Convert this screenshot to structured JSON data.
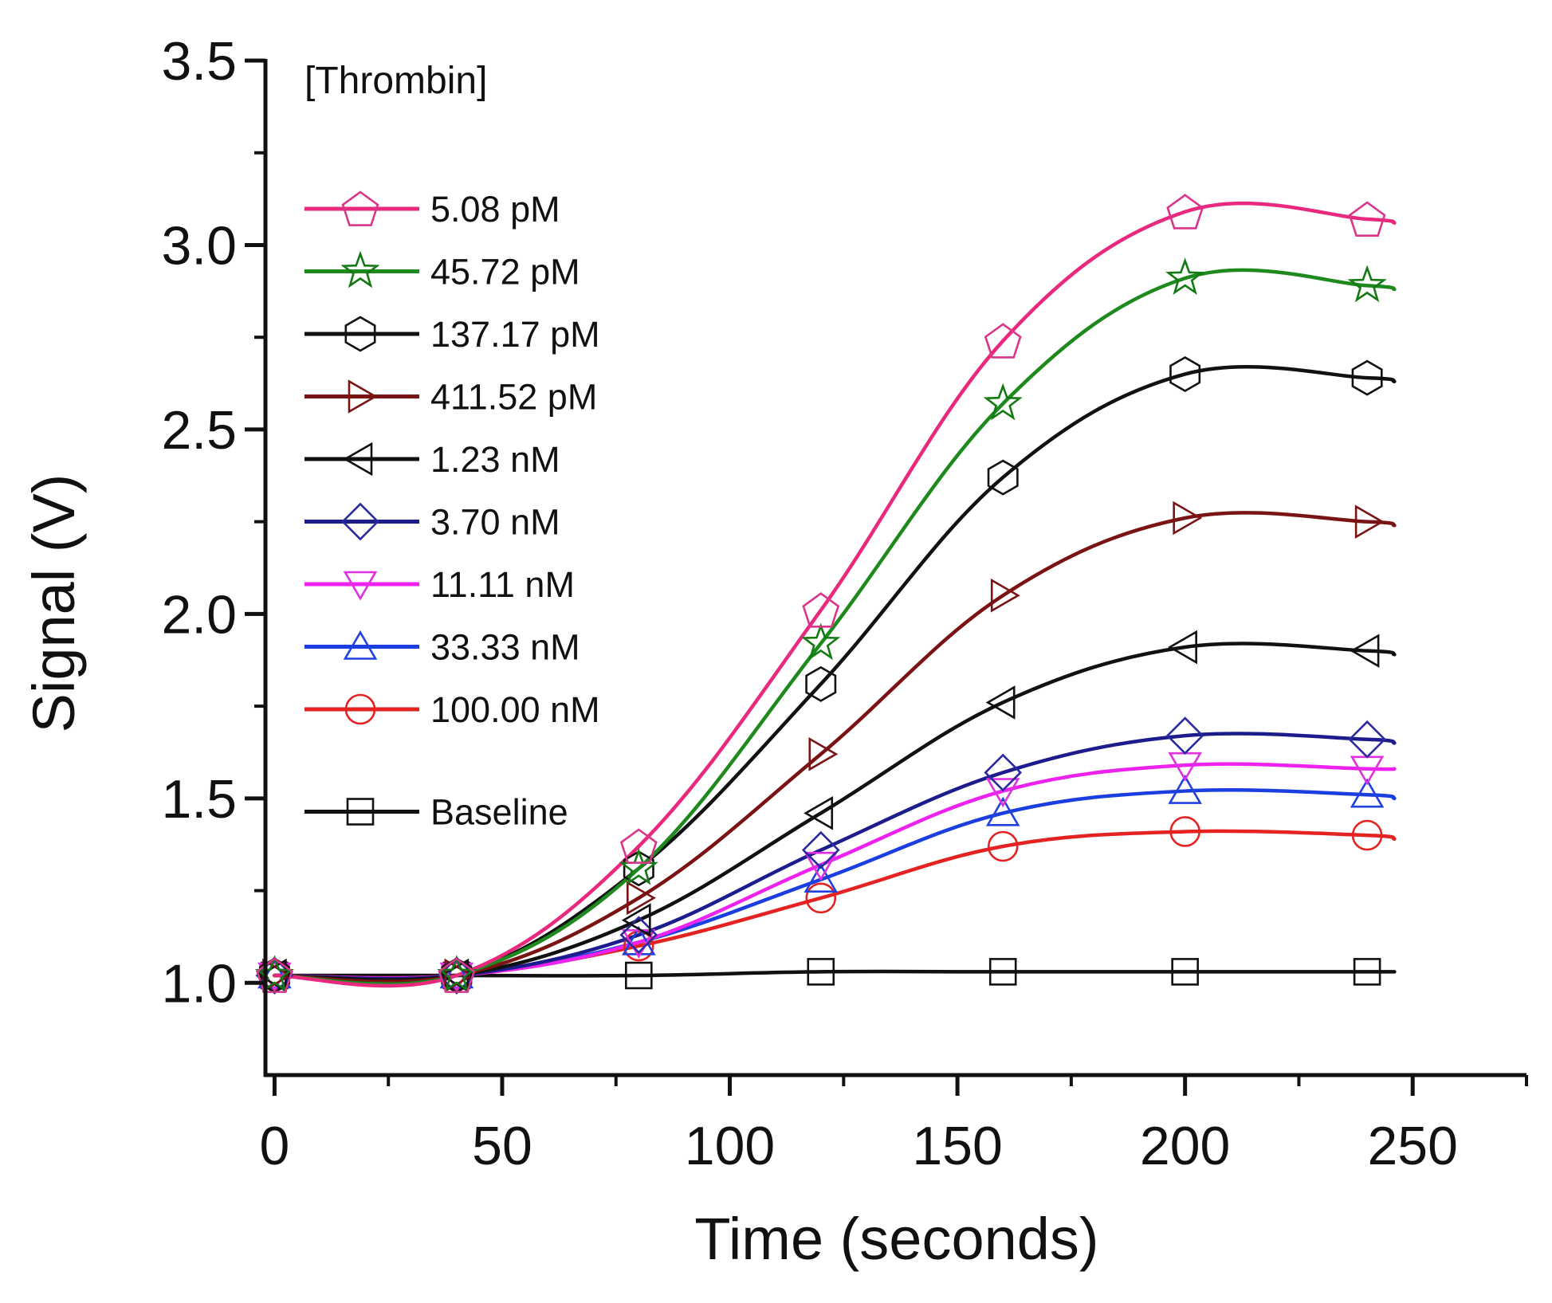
{
  "chart_data": {
    "type": "line",
    "title": "",
    "xlabel": "Time (seconds)",
    "ylabel": "Signal (V)",
    "xlim": [
      -2,
      275
    ],
    "ylim": [
      0.75,
      3.5
    ],
    "x_ticks": [
      0,
      50,
      100,
      150,
      200,
      250
    ],
    "x_tick_labels": [
      "0",
      "50",
      "100",
      "150",
      "200",
      "250"
    ],
    "x_minor_ticks": [
      25,
      75,
      125,
      175,
      225,
      275
    ],
    "y_ticks": [
      1.0,
      1.5,
      2.0,
      2.5,
      3.0,
      3.5
    ],
    "y_tick_labels": [
      "1.0",
      "1.5",
      "2.0",
      "2.5",
      "3.0",
      "3.5"
    ],
    "y_minor_ticks": [
      1.25,
      1.75,
      2.25,
      2.75,
      3.25
    ],
    "grid": false,
    "legend_title": "[Thrombin]",
    "legend_position": "top-left",
    "x": [
      0,
      40,
      80,
      120,
      160,
      200,
      240
    ],
    "line_x_end": 246,
    "series": [
      {
        "name": "5.08 pM",
        "color": "#e8297e",
        "marker": "pentagon",
        "marker_color": "#d8368a",
        "values": [
          1.02,
          1.02,
          1.37,
          2.01,
          2.74,
          3.09,
          3.07
        ],
        "line_end": 3.06
      },
      {
        "name": "45.72 pM",
        "color": "#1e8a1e",
        "marker": "star",
        "marker_color": "#137a13",
        "values": [
          1.02,
          1.02,
          1.31,
          1.92,
          2.57,
          2.91,
          2.89
        ],
        "line_end": 2.88
      },
      {
        "name": "137.17 pM",
        "color": "#111111",
        "marker": "hexagon",
        "marker_color": "#111111",
        "values": [
          1.02,
          1.02,
          1.31,
          1.81,
          2.37,
          2.65,
          2.64
        ],
        "line_end": 2.63
      },
      {
        "name": "411.52 pM",
        "color": "#7a1414",
        "marker": "triangle-right",
        "marker_color": "#7a1414",
        "values": [
          1.02,
          1.02,
          1.23,
          1.62,
          2.05,
          2.26,
          2.25
        ],
        "line_end": 2.24
      },
      {
        "name": "1.23 nM",
        "color": "#111111",
        "marker": "triangle-left",
        "marker_color": "#111111",
        "values": [
          1.02,
          1.02,
          1.17,
          1.46,
          1.76,
          1.91,
          1.9
        ],
        "line_end": 1.89
      },
      {
        "name": "3.70 nM",
        "color": "#1c1c8c",
        "marker": "diamond",
        "marker_color": "#2a2aa0",
        "values": [
          1.02,
          1.02,
          1.13,
          1.36,
          1.57,
          1.67,
          1.66
        ],
        "line_end": 1.65
      },
      {
        "name": "11.11 nM",
        "color": "#ee22ee",
        "marker": "triangle-down",
        "marker_color": "#e030e0",
        "values": [
          1.02,
          1.02,
          1.11,
          1.32,
          1.52,
          1.59,
          1.58
        ],
        "line_end": 1.58
      },
      {
        "name": "33.33 nM",
        "color": "#1a3ee0",
        "marker": "triangle-up",
        "marker_color": "#2040e0",
        "values": [
          1.02,
          1.02,
          1.11,
          1.28,
          1.46,
          1.52,
          1.51
        ],
        "line_end": 1.5
      },
      {
        "name": "100.00 nM",
        "color": "#e52222",
        "marker": "circle",
        "marker_color": "#e52222",
        "values": [
          1.02,
          1.02,
          1.1,
          1.23,
          1.37,
          1.41,
          1.4
        ],
        "line_end": 1.39
      },
      {
        "name": "Baseline",
        "color": "#111111",
        "marker": "square",
        "marker_color": "#111111",
        "values": [
          1.02,
          1.02,
          1.02,
          1.03,
          1.03,
          1.03,
          1.03
        ],
        "line_end": 1.03,
        "legend_gap": true
      }
    ]
  }
}
